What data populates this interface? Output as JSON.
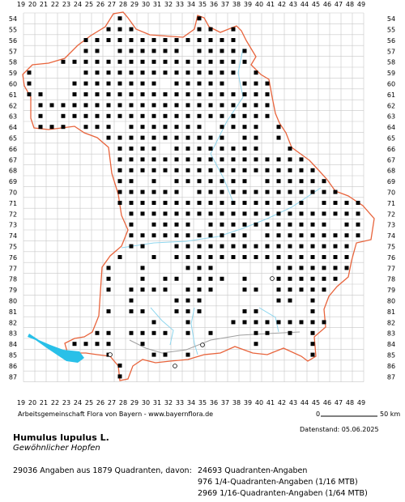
{
  "map": {
    "x_labels": [
      "19",
      "20",
      "21",
      "22",
      "23",
      "24",
      "25",
      "26",
      "27",
      "28",
      "29",
      "30",
      "31",
      "32",
      "33",
      "34",
      "35",
      "36",
      "37",
      "38",
      "39",
      "40",
      "41",
      "42",
      "43",
      "44",
      "45",
      "46",
      "47",
      "48",
      "49"
    ],
    "y_labels": [
      "54",
      "55",
      "56",
      "57",
      "58",
      "59",
      "60",
      "61",
      "62",
      "63",
      "64",
      "65",
      "66",
      "67",
      "68",
      "69",
      "70",
      "71",
      "72",
      "73",
      "74",
      "75",
      "76",
      "77",
      "78",
      "79",
      "80",
      "81",
      "82",
      "83",
      "84",
      "85",
      "86",
      "87"
    ],
    "colors": {
      "grid": "#c8c8c8",
      "border": "#e8643c",
      "water": "#29c0e8",
      "river": "#8fd6ee",
      "rivers_alpine": "#a0a0a0",
      "dot": "#000000"
    },
    "legend_dot_types": [
      "quadrant-black-square",
      "quarter-quadrant-black-dot",
      "sixteenth-quadrant-small-dot",
      "hollow-circle-unconfirmed"
    ]
  },
  "footer": {
    "organisation": "Arbeitsgemeinschaft Flora von Bayern - www.bayernflora.de",
    "scale_start": "0",
    "scale_end": "50 km",
    "datenstand": "Datenstand: 05.06.2025"
  },
  "species": {
    "scientific_name": "Humulus lupulus L.",
    "common_name": "Gewöhnlicher Hopfen"
  },
  "stats": {
    "summary": "29036 Angaben aus 1879 Quadranten, davon:",
    "line1": "24693 Quadranten-Angaben",
    "line2": "976 1/4-Quadranten-Angaben (1/16 MTB)",
    "line3": "2969 1/16-Quadranten-Angaben (1/64 MTB)"
  }
}
